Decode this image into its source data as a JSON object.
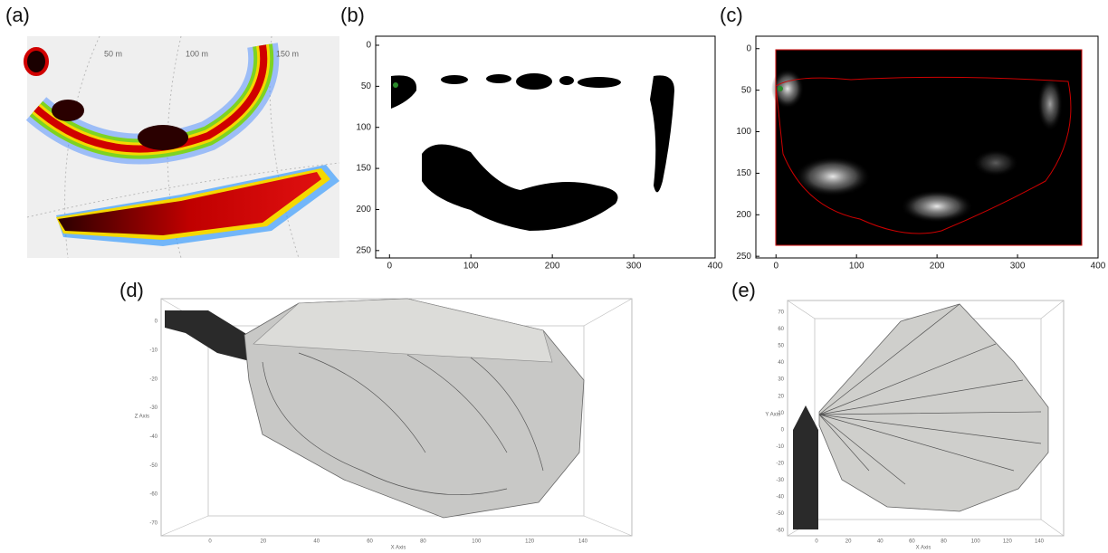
{
  "panels": {
    "a": {
      "label": "(a)",
      "range_labels": [
        "50 m",
        "100 m",
        "150 m"
      ]
    },
    "b": {
      "label": "(b)",
      "xlim": [
        -17,
        400
      ],
      "ylim": [
        -11,
        259
      ],
      "xticks": [
        0,
        100,
        200,
        300,
        400
      ],
      "yticks": [
        0,
        50,
        100,
        150,
        200,
        250
      ]
    },
    "c": {
      "label": "(c)",
      "xlim": [
        -25,
        400
      ],
      "ylim": [
        -15,
        252
      ],
      "xticks": [
        0,
        100,
        200,
        300,
        400
      ],
      "yticks": [
        0,
        50,
        100,
        150,
        200,
        250
      ]
    },
    "d": {
      "label": "(d)",
      "x_axis_label": "X Axis",
      "z_axis_label": "Z Axis",
      "xticks": [
        0,
        20,
        40,
        60,
        80,
        100,
        120,
        140
      ],
      "zticks": [
        0,
        -10,
        -20,
        -30,
        -40,
        -50,
        -60,
        -70
      ]
    },
    "e": {
      "label": "(e)",
      "x_axis_label": "X Axis",
      "y_axis_label": "Y Axis",
      "xticks": [
        0,
        20,
        40,
        60,
        80,
        100,
        120,
        140
      ],
      "yticks": [
        70,
        60,
        50,
        40,
        30,
        20,
        10,
        0,
        -10,
        -20,
        -30,
        -40,
        -50,
        -60
      ]
    }
  }
}
